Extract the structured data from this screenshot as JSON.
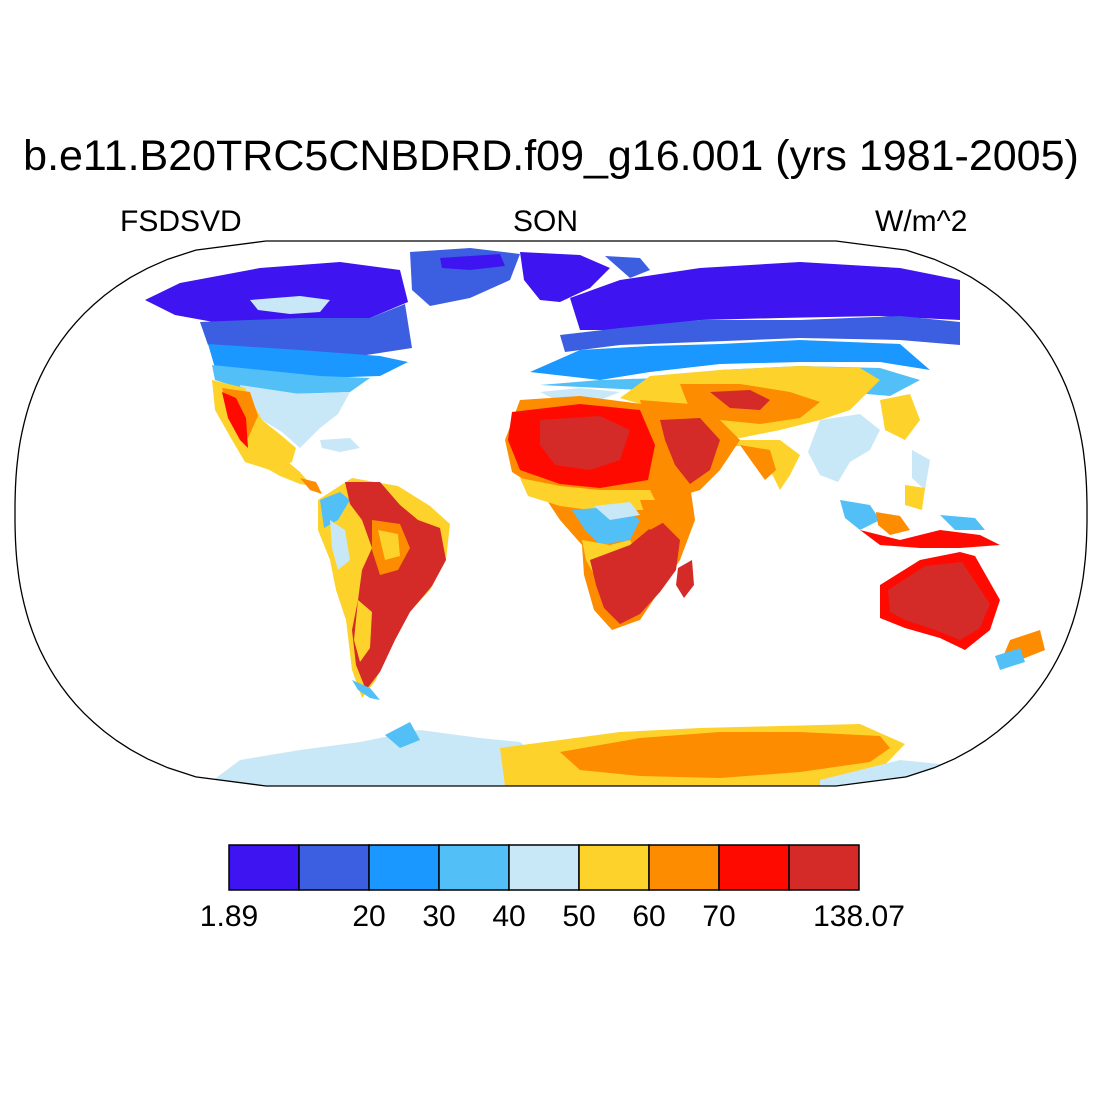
{
  "title": "b.e11.B20TRC5CNBDRD.f09_g16.001 (yrs 1981-2005)",
  "subtitle_left": "FSDSVD",
  "subtitle_center": "SON",
  "subtitle_right": "W/m^2",
  "map": {
    "projection": "robinson",
    "field": "FSDSVD",
    "land_only": true,
    "ocean_color": "#ffffff",
    "coastline_color": "#000000"
  },
  "colorbar": {
    "colors": [
      "#3e14f0",
      "#3c5fe1",
      "#1a98ff",
      "#52c0f6",
      "#c8e8f7",
      "#fdd22b",
      "#fd8c00",
      "#ff0a00",
      "#d42a28"
    ],
    "labels": [
      "1.89",
      "20",
      "30",
      "40",
      "50",
      "60",
      "70",
      "138.07"
    ]
  }
}
